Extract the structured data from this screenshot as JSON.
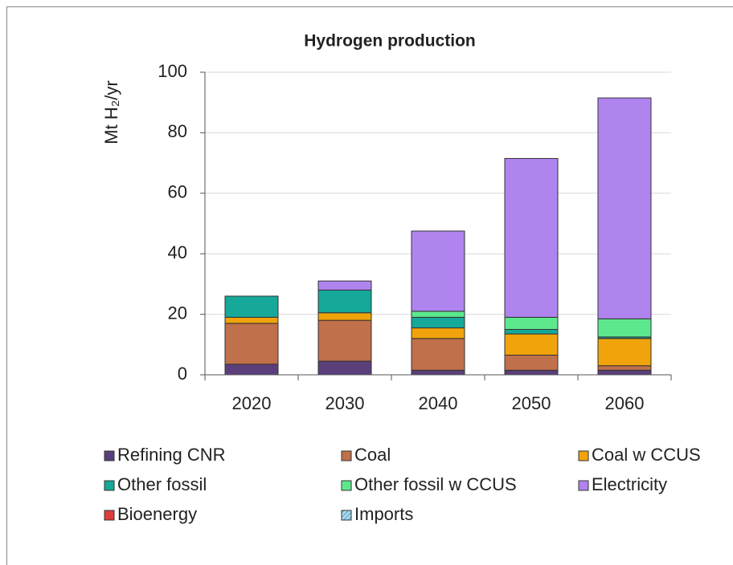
{
  "chart_data": {
    "type": "stacked_bar",
    "title": "Hydrogen production",
    "y_label": "Mt H₂/yr",
    "categories": [
      "2020",
      "2030",
      "2040",
      "2050",
      "2060"
    ],
    "ylim": [
      0,
      100
    ],
    "yticks": [
      0,
      20,
      40,
      60,
      80,
      100
    ],
    "grid": true,
    "series": [
      {
        "name": "Refining CNR",
        "color": "#5b3f7a",
        "values": [
          3.5,
          4.5,
          1.5,
          1.5,
          1.5
        ]
      },
      {
        "name": "Coal",
        "color": "#c0704a",
        "values": [
          13.5,
          13.5,
          10.5,
          5,
          1.5
        ]
      },
      {
        "name": "Coal w CCUS",
        "color": "#f0a30a",
        "values": [
          2,
          2.5,
          3.5,
          7,
          9
        ]
      },
      {
        "name": "Other fossil",
        "color": "#16a899",
        "values": [
          7,
          7.5,
          3.5,
          1.5,
          0.5
        ]
      },
      {
        "name": "Other fossil w CCUS",
        "color": "#5ee88e",
        "values": [
          0,
          0,
          2,
          4,
          6
        ]
      },
      {
        "name": "Electricity",
        "color": "#b084ef",
        "values": [
          0,
          3,
          26.5,
          52.5,
          73
        ]
      },
      {
        "name": "Bioenergy",
        "color": "#e03c3c",
        "values": [
          0,
          0,
          0,
          0,
          0
        ]
      },
      {
        "name": "Imports",
        "color": "#a8d8ea",
        "values": [
          0,
          0,
          0,
          0,
          0
        ]
      }
    ]
  }
}
